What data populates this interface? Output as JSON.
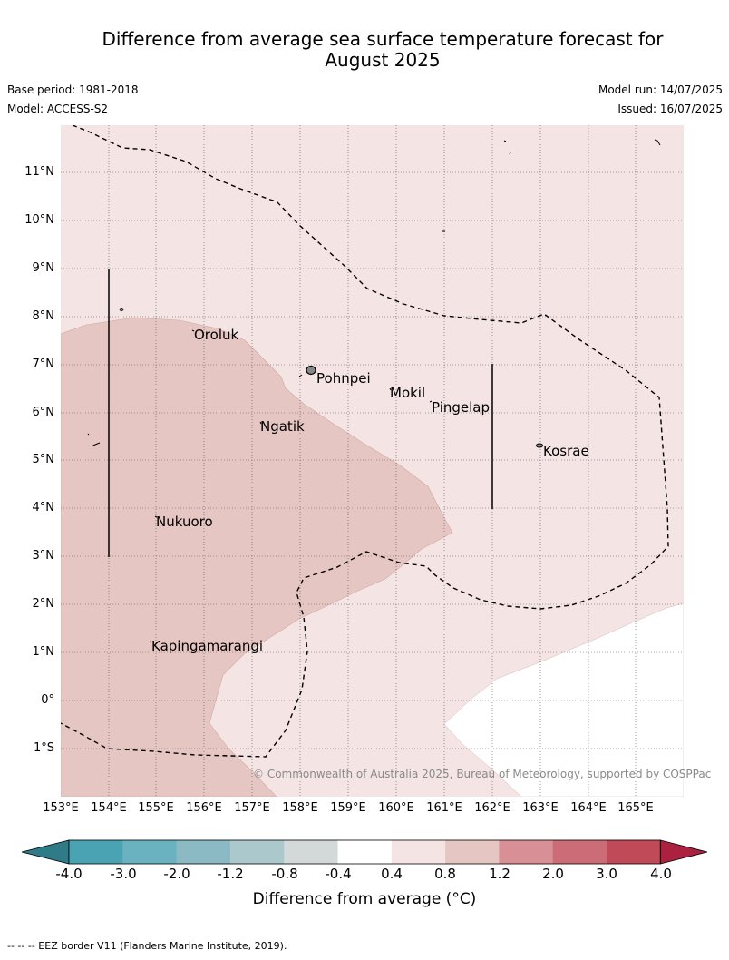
{
  "title_line1": "Difference from average sea surface temperature forecast for",
  "title_line2": "August 2025",
  "base_period": "Base period: 1981-2018",
  "model": "Model: ACCESS-S2",
  "model_run": "Model run: 14/07/2025",
  "issued": "Issued: 16/07/2025",
  "lat_labels": [
    "11°N",
    "10°N",
    "9°N",
    "8°N",
    "7°N",
    "6°N",
    "5°N",
    "4°N",
    "3°N",
    "2°N",
    "1°N",
    "0°",
    "1°S"
  ],
  "lon_labels": [
    "153°E",
    "154°E",
    "155°E",
    "156°E",
    "157°E",
    "158°E",
    "159°E",
    "160°E",
    "161°E",
    "162°E",
    "163°E",
    "164°E",
    "165°E"
  ],
  "places": [
    "Oroluk",
    "Pohnpei",
    "Mokil",
    "Pingelap",
    "Ngatik",
    "Kosrae",
    "Nukuoro",
    "Kapingamarangi"
  ],
  "copyright": "© Commonwealth of Australia 2025, Bureau of Meteorology, supported by COSPPac",
  "colorbar": {
    "ticks": [
      "-4.0",
      "-3.0",
      "-2.0",
      "-1.2",
      "-0.8",
      "-0.4",
      "0.4",
      "0.8",
      "1.2",
      "2.0",
      "3.0",
      "4.0"
    ],
    "colors": [
      "#2f7c88",
      "#4aa3b3",
      "#6ab2c0",
      "#8bbac5",
      "#abc8cc",
      "#d3d8d8",
      "#ffffff",
      "#f4e5e4",
      "#e6c6c2",
      "#d88f96",
      "#cc6c76",
      "#c04a58",
      "#ac2040"
    ],
    "title": "Difference from average (",
    "title_unit": "°C)"
  },
  "footnote": "--  --  -- EEZ border V11 (Flanders Marine Institute, 2019)."
}
